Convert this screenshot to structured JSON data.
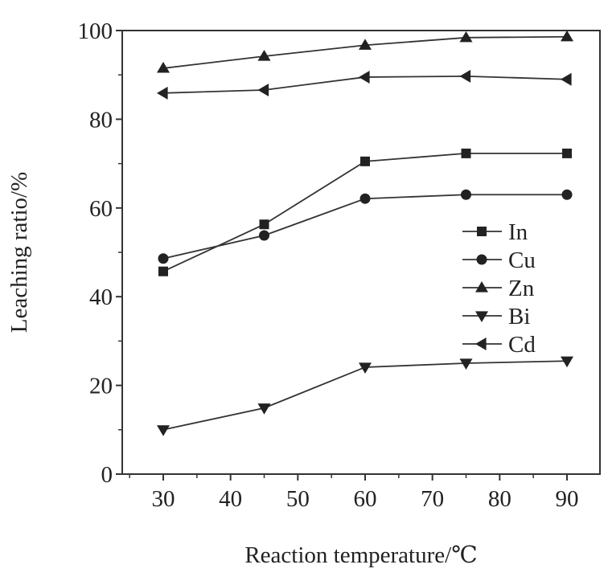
{
  "chart_data": {
    "type": "line",
    "title": "",
    "xlabel": "Reaction temperature/℃",
    "ylabel": "Leaching ratio/%",
    "xlim": [
      25,
      95
    ],
    "ylim": [
      0,
      100
    ],
    "xticks": [
      30,
      40,
      50,
      60,
      70,
      80,
      90
    ],
    "yticks": [
      0,
      20,
      40,
      60,
      80,
      100
    ],
    "grid": false,
    "legend_position": "center-right",
    "x": [
      30,
      45,
      60,
      75,
      90
    ],
    "series": [
      {
        "name": "In",
        "marker": "square",
        "values": [
          45.7,
          56.3,
          70.5,
          72.3,
          72.3
        ]
      },
      {
        "name": "Cu",
        "marker": "circle",
        "values": [
          48.6,
          53.8,
          62.1,
          63.0,
          63.0
        ]
      },
      {
        "name": "Zn",
        "marker": "triangle-up",
        "values": [
          91.5,
          94.2,
          96.7,
          98.4,
          98.6
        ]
      },
      {
        "name": "Bi",
        "marker": "triangle-down",
        "values": [
          10.0,
          14.9,
          24.1,
          25.0,
          25.5
        ]
      },
      {
        "name": "Cd",
        "marker": "triangle-left",
        "values": [
          85.9,
          86.6,
          89.5,
          89.7,
          89.0
        ]
      }
    ],
    "colors": {
      "line": "#333333",
      "marker": "#222222"
    }
  }
}
